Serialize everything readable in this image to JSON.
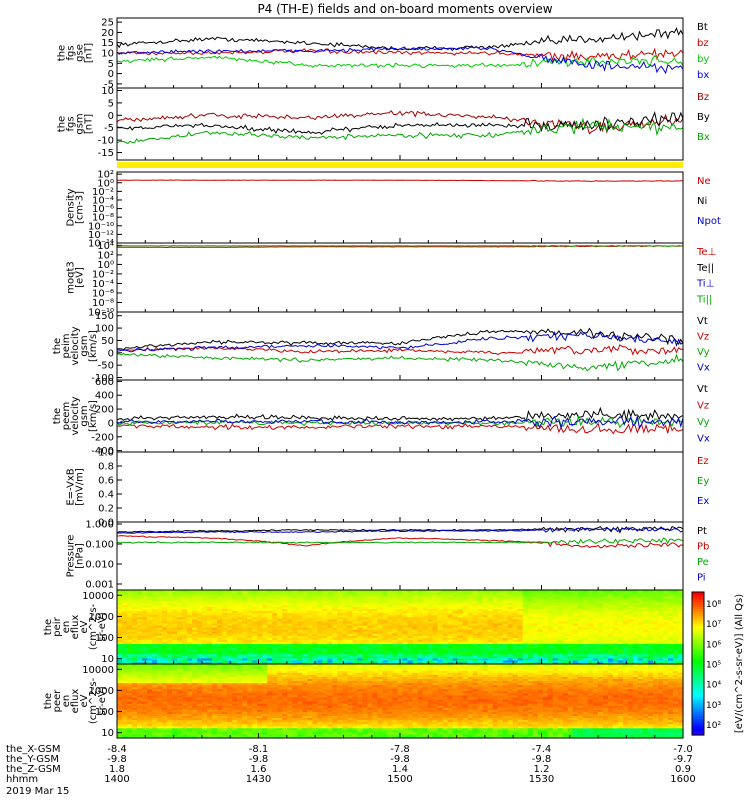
{
  "title": "P4 (TH-E) fields and on-board moments overview",
  "panels": [
    {
      "id": "fgs_gse",
      "ylabels": [
        "the",
        "fgs",
        "gse",
        "[nT]"
      ],
      "ticks": [
        {
          "v": 25,
          "t": "25"
        },
        {
          "v": 20,
          "t": "20"
        },
        {
          "v": 15,
          "t": "15"
        },
        {
          "v": 10,
          "t": "10"
        },
        {
          "v": 5,
          "t": "5"
        },
        {
          "v": 0,
          "t": "0"
        },
        {
          "v": -5,
          "t": "-5"
        }
      ],
      "ylim": [
        -7,
        27
      ],
      "legend": [
        {
          "t": "Bt",
          "c": "#000000"
        },
        {
          "t": "bz",
          "c": "#d00000"
        },
        {
          "t": "by",
          "c": "#00cc00"
        },
        {
          "t": "bx",
          "c": "#0000ee"
        }
      ]
    },
    {
      "id": "fgs_gsm",
      "ylabels": [
        "the",
        "fgs",
        "gsm",
        "[nT]"
      ],
      "ticks": [
        {
          "v": 10,
          "t": "10"
        },
        {
          "v": 5,
          "t": "5"
        },
        {
          "v": 0,
          "t": "0"
        },
        {
          "v": -5,
          "t": "-5"
        },
        {
          "v": -10,
          "t": "-10"
        },
        {
          "v": -15,
          "t": "-15"
        }
      ],
      "ylim": [
        -18,
        11
      ],
      "legend": [
        {
          "t": "Bz",
          "c": "#a00000"
        },
        {
          "t": "By",
          "c": "#000000"
        },
        {
          "t": "Bx",
          "c": "#00aa00"
        }
      ]
    },
    {
      "id": "density",
      "ylabels": [
        "Density",
        "[cm-3]"
      ],
      "ticks": [
        {
          "v": 2,
          "t": "10²"
        },
        {
          "v": 0,
          "t": "10⁰"
        },
        {
          "v": -2,
          "t": "10⁻²"
        },
        {
          "v": -4,
          "t": "10⁻⁴"
        },
        {
          "v": -6,
          "t": "10⁻⁶"
        },
        {
          "v": -8,
          "t": "10⁻⁸"
        },
        {
          "v": -10,
          "t": "10⁻¹⁰"
        },
        {
          "v": -12,
          "t": "10⁻¹²"
        },
        {
          "v": -14,
          "t": "10⁻¹⁴"
        }
      ],
      "ylim": [
        -14,
        2.5
      ],
      "legend": [
        {
          "t": "Ne",
          "c": "#cc0000"
        },
        {
          "t": "Ni",
          "c": "#000000"
        },
        {
          "t": "Npot",
          "c": "#0000cc"
        }
      ]
    },
    {
      "id": "temp",
      "ylabels": [
        "moqt3",
        "[eV]"
      ],
      "ticks": [
        {
          "v": 4,
          "t": "10⁴"
        },
        {
          "v": 2,
          "t": "10²"
        },
        {
          "v": 0,
          "t": "10⁰"
        },
        {
          "v": -2,
          "t": "10⁻²"
        },
        {
          "v": -4,
          "t": "10⁻⁴"
        },
        {
          "v": -6,
          "t": "10⁻⁶"
        },
        {
          "v": -8,
          "t": "10⁻⁸"
        },
        {
          "v": -10,
          "t": "10⁻¹⁰"
        }
      ],
      "ylim": [
        -10,
        4.5
      ],
      "legend": [
        {
          "t": "Te⊥",
          "c": "#cc0000"
        },
        {
          "t": "Te||",
          "c": "#000000"
        },
        {
          "t": "Ti⊥",
          "c": "#0000cc"
        },
        {
          "t": "Ti||",
          "c": "#00aa00"
        }
      ]
    },
    {
      "id": "peim_v",
      "ylabels": [
        "the",
        "peim",
        "velocity",
        "gsm",
        "[km/s]"
      ],
      "ticks": [
        {
          "v": 150,
          "t": "150"
        },
        {
          "v": 100,
          "t": "100"
        },
        {
          "v": 50,
          "t": "50"
        },
        {
          "v": 0,
          "t": "0"
        },
        {
          "v": -50,
          "t": "-50"
        },
        {
          "v": -100,
          "t": "-100"
        }
      ],
      "ylim": [
        -110,
        165
      ],
      "legend": [
        {
          "t": "Vt",
          "c": "#000000"
        },
        {
          "t": "Vz",
          "c": "#cc0000"
        },
        {
          "t": "Vy",
          "c": "#00aa00"
        },
        {
          "t": "Vx",
          "c": "#0000cc"
        }
      ]
    },
    {
      "id": "peem_v",
      "ylabels": [
        "the",
        "peem",
        "velocity",
        "gsm",
        "[km/s]"
      ],
      "ticks": [
        {
          "v": 600,
          "t": "600"
        },
        {
          "v": 400,
          "t": "400"
        },
        {
          "v": 200,
          "t": "200"
        },
        {
          "v": 0,
          "t": "0"
        },
        {
          "v": -200,
          "t": "-200"
        },
        {
          "v": -400,
          "t": "-400"
        }
      ],
      "ylim": [
        -420,
        620
      ],
      "legend": [
        {
          "t": "Vt",
          "c": "#000000"
        },
        {
          "t": "Vz",
          "c": "#cc0000"
        },
        {
          "t": "Vy",
          "c": "#00aa00"
        },
        {
          "t": "Vx",
          "c": "#0000cc"
        }
      ]
    },
    {
      "id": "efield",
      "ylabels": [
        "E=-VxB",
        "[mV/m]"
      ],
      "ticks": [
        {
          "v": 1.0,
          "t": "1.0"
        },
        {
          "v": 0.8,
          "t": "0.8"
        },
        {
          "v": 0.6,
          "t": "0.6"
        },
        {
          "v": 0.4,
          "t": "0.4"
        },
        {
          "v": 0.2,
          "t": "0.2"
        },
        {
          "v": 0.0,
          "t": "0.0"
        }
      ],
      "ylim": [
        0,
        1.0
      ],
      "legend": [
        {
          "t": "Ez",
          "c": "#cc0000"
        },
        {
          "t": "Ey",
          "c": "#00aa00"
        },
        {
          "t": "Ex",
          "c": "#0000cc"
        }
      ]
    },
    {
      "id": "pressure",
      "ylabels": [
        "Pressure",
        "[nPa]"
      ],
      "ticks": [
        {
          "v": 0,
          "t": "1.000"
        },
        {
          "v": -1,
          "t": "0.100"
        },
        {
          "v": -2,
          "t": "0.010"
        },
        {
          "v": -3,
          "t": "0.001"
        }
      ],
      "ylim": [
        -3.3,
        0.1
      ],
      "legend": [
        {
          "t": "Pt",
          "c": "#000000"
        },
        {
          "t": "Pb",
          "c": "#cc0000"
        },
        {
          "t": "Pe",
          "c": "#00aa00"
        },
        {
          "t": "Pi",
          "c": "#0000cc"
        }
      ]
    },
    {
      "id": "peir",
      "ylabels": [
        "the",
        "peir",
        "en",
        "eflux",
        "eV",
        "(cm^2-s-",
        "sr-eV)"
      ],
      "ticks": [
        {
          "v": 4,
          "t": "10000"
        },
        {
          "v": 3,
          "t": "1000"
        },
        {
          "v": 2,
          "t": "100"
        },
        {
          "v": 1,
          "t": "10"
        }
      ],
      "ylim": [
        0.75,
        4.25
      ],
      "legend": []
    },
    {
      "id": "peer",
      "ylabels": [
        "the",
        "peer",
        "en",
        "eflux",
        "eV",
        "(cm^2-s-",
        "sr-eV)"
      ],
      "ticks": [
        {
          "v": 4,
          "t": "10000"
        },
        {
          "v": 3,
          "t": "1000"
        },
        {
          "v": 2,
          "t": "100"
        },
        {
          "v": 1,
          "t": "10"
        }
      ],
      "ylim": [
        0.75,
        4.25
      ],
      "legend": []
    }
  ],
  "colorbar": {
    "label": "[eV/(cm^2-s-sr-eV)] (All Qs)",
    "ticks": [
      "10⁸",
      "10⁷",
      "10⁶",
      "10⁵",
      "10⁴",
      "10³",
      "10²"
    ]
  },
  "axis": {
    "rows": [
      {
        "label": "the_X-GSM",
        "values": [
          "-8.4",
          "-8.1",
          "-7.8",
          "-7.4",
          "-7.0"
        ]
      },
      {
        "label": "the_Y-GSM",
        "values": [
          "-9.8",
          "-9.8",
          "-9.8",
          "-9.8",
          "-9.7"
        ]
      },
      {
        "label": "the_Z-GSM",
        "values": [
          "1.8",
          "1.6",
          "1.4",
          "1.2",
          "0.9"
        ]
      },
      {
        "label": "hhmm",
        "values": [
          "1400",
          "1430",
          "1500",
          "1530",
          "1600"
        ]
      }
    ],
    "date": "2019 Mar 15"
  },
  "chart_data": {
    "type": "line",
    "title": "P4 (TH-E) fields and on-board moments overview",
    "x": [
      1400,
      1420,
      1440,
      1500,
      1520,
      1540,
      1600
    ],
    "x_ticks": [
      "1400",
      "1430",
      "1500",
      "1530",
      "1600"
    ],
    "date": "2019 Mar 15",
    "series": [
      {
        "panel": "fgs_gse",
        "name": "Bt",
        "values": [
          14,
          17,
          15,
          12,
          13,
          17,
          20
        ]
      },
      {
        "panel": "fgs_gse",
        "name": "bz",
        "values": [
          10,
          10,
          11,
          10,
          10,
          8,
          10
        ]
      },
      {
        "panel": "fgs_gse",
        "name": "by",
        "values": [
          6,
          8,
          4,
          4,
          4,
          6,
          6
        ]
      },
      {
        "panel": "fgs_gse",
        "name": "bx",
        "values": [
          10,
          11,
          11,
          12,
          12,
          4,
          2
        ]
      },
      {
        "panel": "fgs_gsm",
        "name": "Bz",
        "values": [
          -2,
          0,
          -1,
          1,
          -1,
          -5,
          -2
        ]
      },
      {
        "panel": "fgs_gsm",
        "name": "By",
        "values": [
          -5,
          -4,
          -7,
          -4,
          -4,
          -4,
          -1
        ]
      },
      {
        "panel": "fgs_gsm",
        "name": "Bx",
        "values": [
          -11,
          -7,
          -9,
          -8,
          -8,
          -4,
          -5
        ]
      },
      {
        "panel": "density",
        "name": "Ne",
        "values": [
          0.6,
          0.6,
          0.6,
          0.6,
          0.5,
          0.4,
          0.4
        ]
      },
      {
        "panel": "temp",
        "name": "Te⊥",
        "values": [
          3.6,
          3.6,
          3.7,
          3.7,
          3.7,
          3.8,
          3.9
        ]
      },
      {
        "panel": "temp",
        "name": "Ti||",
        "values": [
          3.9,
          3.9,
          3.9,
          3.9,
          3.9,
          3.9,
          3.9
        ]
      },
      {
        "panel": "peim_v",
        "name": "Vt",
        "values": [
          15,
          45,
          40,
          40,
          90,
          80,
          50
        ]
      },
      {
        "panel": "peim_v",
        "name": "Vz",
        "values": [
          10,
          20,
          5,
          10,
          0,
          10,
          10
        ]
      },
      {
        "panel": "peim_v",
        "name": "Vy",
        "values": [
          -5,
          -20,
          -30,
          -20,
          -30,
          -60,
          -30
        ]
      },
      {
        "panel": "peim_v",
        "name": "Vx",
        "values": [
          10,
          20,
          30,
          20,
          60,
          70,
          40
        ]
      },
      {
        "panel": "peem_v",
        "name": "Vt",
        "values": [
          60,
          90,
          80,
          60,
          60,
          120,
          100
        ]
      },
      {
        "panel": "peem_v",
        "name": "Vz",
        "values": [
          -40,
          -60,
          -60,
          -50,
          -50,
          -100,
          -80
        ]
      },
      {
        "panel": "peem_v",
        "name": "Vy",
        "values": [
          0,
          10,
          0,
          0,
          0,
          20,
          20
        ]
      },
      {
        "panel": "peem_v",
        "name": "Vx",
        "values": [
          10,
          20,
          20,
          10,
          10,
          10,
          10
        ]
      },
      {
        "panel": "pressure",
        "name": "Pt",
        "values": [
          0.4,
          0.45,
          0.5,
          0.5,
          0.5,
          0.6,
          0.6
        ]
      },
      {
        "panel": "pressure",
        "name": "Pb",
        "values": [
          0.25,
          0.2,
          0.08,
          0.2,
          0.15,
          0.07,
          0.1
        ]
      },
      {
        "panel": "pressure",
        "name": "Pe",
        "values": [
          0.12,
          0.12,
          0.12,
          0.12,
          0.12,
          0.13,
          0.16
        ]
      },
      {
        "panel": "pressure",
        "name": "Pi",
        "values": [
          0.35,
          0.4,
          0.4,
          0.45,
          0.45,
          0.55,
          0.5
        ]
      }
    ]
  }
}
